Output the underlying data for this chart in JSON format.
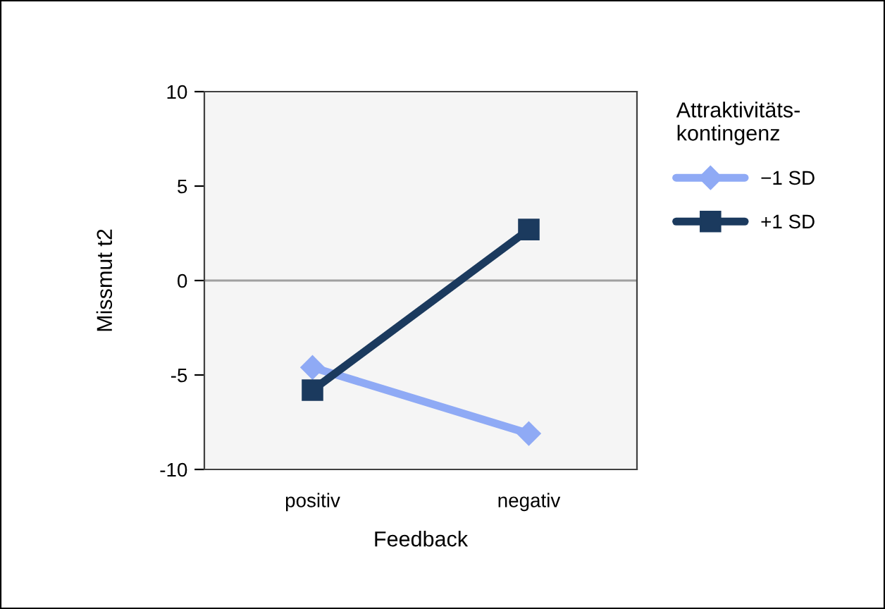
{
  "chart_data": {
    "type": "line",
    "xlabel": "Feedback",
    "ylabel": "Missmut t2",
    "legend_title": "Attraktivitäts-\nkontingenz",
    "categories": [
      "positiv",
      "negativ"
    ],
    "series": [
      {
        "name": "−1 SD",
        "color": "#8faaf5",
        "values": [
          -4.6,
          -8.1
        ],
        "marker": "diamond"
      },
      {
        "name": "+1 SD",
        "color": "#1b3a5e",
        "values": [
          -5.8,
          2.7
        ],
        "marker": "square"
      }
    ],
    "ylim": [
      -10,
      10
    ],
    "yticks": [
      -10,
      -5,
      0,
      5,
      10
    ],
    "ref_lines": [
      {
        "axis": "y",
        "value": 0,
        "color": "#a0a0a0"
      }
    ],
    "grid": false,
    "legend": "right",
    "line_style": "solid"
  }
}
